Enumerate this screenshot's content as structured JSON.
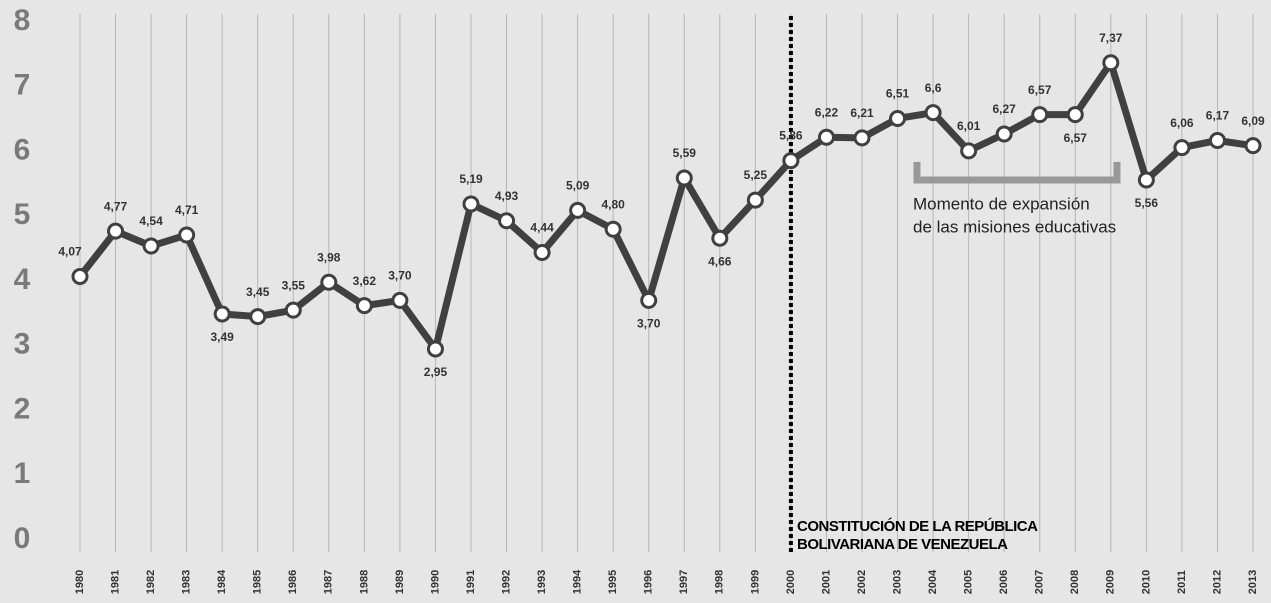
{
  "chart_data": {
    "type": "line",
    "categories": [
      "1980",
      "1981",
      "1982",
      "1983",
      "1984",
      "1985",
      "1986",
      "1987",
      "1988",
      "1989",
      "1990",
      "1991",
      "1992",
      "1993",
      "1994",
      "1995",
      "1996",
      "1997",
      "1998",
      "1999",
      "2000",
      "2001",
      "2002",
      "2003",
      "2004",
      "2005",
      "2006",
      "2007",
      "2008",
      "2009",
      "2010",
      "2011",
      "2012",
      "2013"
    ],
    "series": [
      {
        "color": "#404040",
        "values": [
          4.07,
          4.77,
          4.54,
          4.71,
          3.49,
          3.45,
          3.55,
          3.98,
          3.62,
          3.7,
          2.95,
          5.19,
          4.93,
          4.44,
          5.09,
          4.8,
          3.7,
          5.59,
          4.66,
          5.25,
          5.86,
          6.22,
          6.21,
          6.51,
          6.6,
          6.01,
          6.27,
          6.57,
          6.57,
          7.37,
          5.56,
          6.06,
          6.17,
          6.09
        ],
        "value_labels": [
          "4,07",
          "4,77",
          "4,54",
          "4,71",
          "3,49",
          "3,45",
          "3,55",
          "3,98",
          "3,62",
          "3,70",
          "2,95",
          "5,19",
          "4,93",
          "4,44",
          "5,09",
          "4,80",
          "3,70",
          "5,59",
          "4,66",
          "5,25",
          "5,86",
          "6,22",
          "6,21",
          "6,51",
          "6,6",
          "6,01",
          "6,27",
          "6,57",
          "6,57",
          "7,37",
          "5,56",
          "6,06",
          "6,17",
          "6,09"
        ]
      }
    ],
    "ylim": [
      0,
      8
    ],
    "yticks": [
      0,
      1,
      2,
      3,
      4,
      5,
      6,
      7,
      8
    ],
    "grid": true,
    "annotations": [
      {
        "lines": [
          "CONSTITUCIÓN DE LA REPÚBLICA",
          "BOLIVARIANA DE VENEZUELA"
        ]
      },
      {
        "lines": [
          "Momento de expansión",
          "de las misiones educativas"
        ]
      }
    ]
  }
}
